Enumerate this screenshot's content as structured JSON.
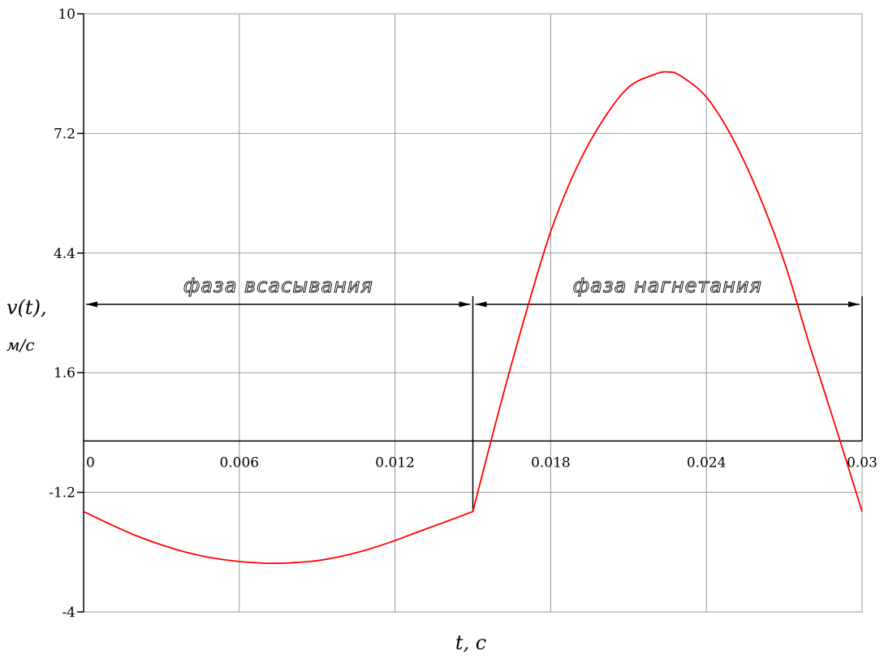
{
  "chart_data": {
    "type": "line",
    "title": "",
    "xlabel": "t, c",
    "ylabel": "v(t),",
    "ylabel_unit": "м/с",
    "xlim": [
      0,
      0.03
    ],
    "ylim": [
      -4,
      10
    ],
    "x_ticks": [
      "0",
      "0.006",
      "0.012",
      "0.018",
      "0.024",
      "0.03"
    ],
    "y_ticks": [
      "10",
      "7.2",
      "4.4",
      "1.6",
      "-1.2",
      "-4"
    ],
    "x_tick_values": [
      0,
      0.006,
      0.012,
      0.018,
      0.024,
      0.03
    ],
    "y_tick_values": [
      10,
      7.2,
      4.4,
      1.6,
      -1.2,
      -4
    ],
    "grid": true,
    "series": [
      {
        "color": "#ff0000",
        "x": [
          0,
          0.001,
          0.002,
          0.003,
          0.004,
          0.005,
          0.006,
          0.007,
          0.0075,
          0.008,
          0.009,
          0.01,
          0.011,
          0.012,
          0.013,
          0.014,
          0.015,
          0.016,
          0.017,
          0.018,
          0.019,
          0.02,
          0.021,
          0.022,
          0.0225,
          0.023,
          0.024,
          0.025,
          0.026,
          0.027,
          0.028,
          0.029,
          0.03
        ],
        "y": [
          -1.65,
          -1.94,
          -2.21,
          -2.43,
          -2.61,
          -2.74,
          -2.82,
          -2.86,
          -2.86,
          -2.85,
          -2.8,
          -2.69,
          -2.53,
          -2.33,
          -2.1,
          -1.88,
          -1.65,
          0.7,
          2.9,
          4.9,
          6.4,
          7.5,
          8.28,
          8.58,
          8.64,
          8.55,
          8.05,
          7.1,
          5.8,
          4.2,
          2.2,
          0.3,
          -1.65
        ]
      }
    ],
    "phase_divider_x": 0.015,
    "arrow_level_y": 3.2,
    "annotations": [
      {
        "text": "фаза всасывания",
        "x_from": 0,
        "x_to": 0.015
      },
      {
        "text": "фаза нагнетания",
        "x_from": 0.015,
        "x_to": 0.03
      }
    ]
  }
}
